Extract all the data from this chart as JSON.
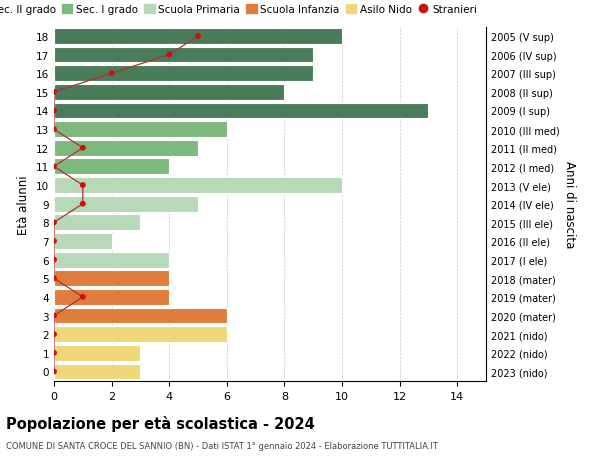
{
  "ages": [
    18,
    17,
    16,
    15,
    14,
    13,
    12,
    11,
    10,
    9,
    8,
    7,
    6,
    5,
    4,
    3,
    2,
    1,
    0
  ],
  "year_labels": [
    "2005 (V sup)",
    "2006 (IV sup)",
    "2007 (III sup)",
    "2008 (II sup)",
    "2009 (I sup)",
    "2010 (III med)",
    "2011 (II med)",
    "2012 (I med)",
    "2013 (V ele)",
    "2014 (IV ele)",
    "2015 (III ele)",
    "2016 (II ele)",
    "2017 (I ele)",
    "2018 (mater)",
    "2019 (mater)",
    "2020 (mater)",
    "2021 (nido)",
    "2022 (nido)",
    "2023 (nido)"
  ],
  "bar_values": [
    10,
    9,
    9,
    8,
    13,
    6,
    5,
    4,
    10,
    5,
    3,
    2,
    4,
    4,
    4,
    6,
    6,
    3,
    3
  ],
  "stranieri": [
    5,
    4,
    2,
    0,
    0,
    0,
    1,
    0,
    1,
    1,
    0,
    0,
    0,
    0,
    1,
    0,
    0,
    0,
    0
  ],
  "bar_colors": [
    "#4a7c59",
    "#4a7c59",
    "#4a7c59",
    "#4a7c59",
    "#4a7c59",
    "#7db87d",
    "#7db87d",
    "#7db87d",
    "#b8d9b8",
    "#b8d9b8",
    "#b8d9b8",
    "#b8d9b8",
    "#b8d9b8",
    "#e07d3c",
    "#e07d3c",
    "#e07d3c",
    "#f0d878",
    "#f0d878",
    "#f0d878"
  ],
  "legend_labels": [
    "Sec. II grado",
    "Sec. I grado",
    "Scuola Primaria",
    "Scuola Infanzia",
    "Asilo Nido",
    "Stranieri"
  ],
  "legend_colors": [
    "#4a7c59",
    "#7db87d",
    "#b8d9b8",
    "#e07d3c",
    "#f0d878",
    "#cc1111"
  ],
  "title": "Popolazione per età scolastica - 2024",
  "subtitle": "COMUNE DI SANTA CROCE DEL SANNIO (BN) - Dati ISTAT 1° gennaio 2024 - Elaborazione TUTTITALIA.IT",
  "ylabel": "Età alunni",
  "ylabel_right": "Anni di nascita",
  "xlim": [
    0,
    15
  ],
  "background_color": "#ffffff",
  "grid_color": "#cccccc",
  "stranieri_color": "#cc1111",
  "stranieri_line_color": "#aa3333"
}
